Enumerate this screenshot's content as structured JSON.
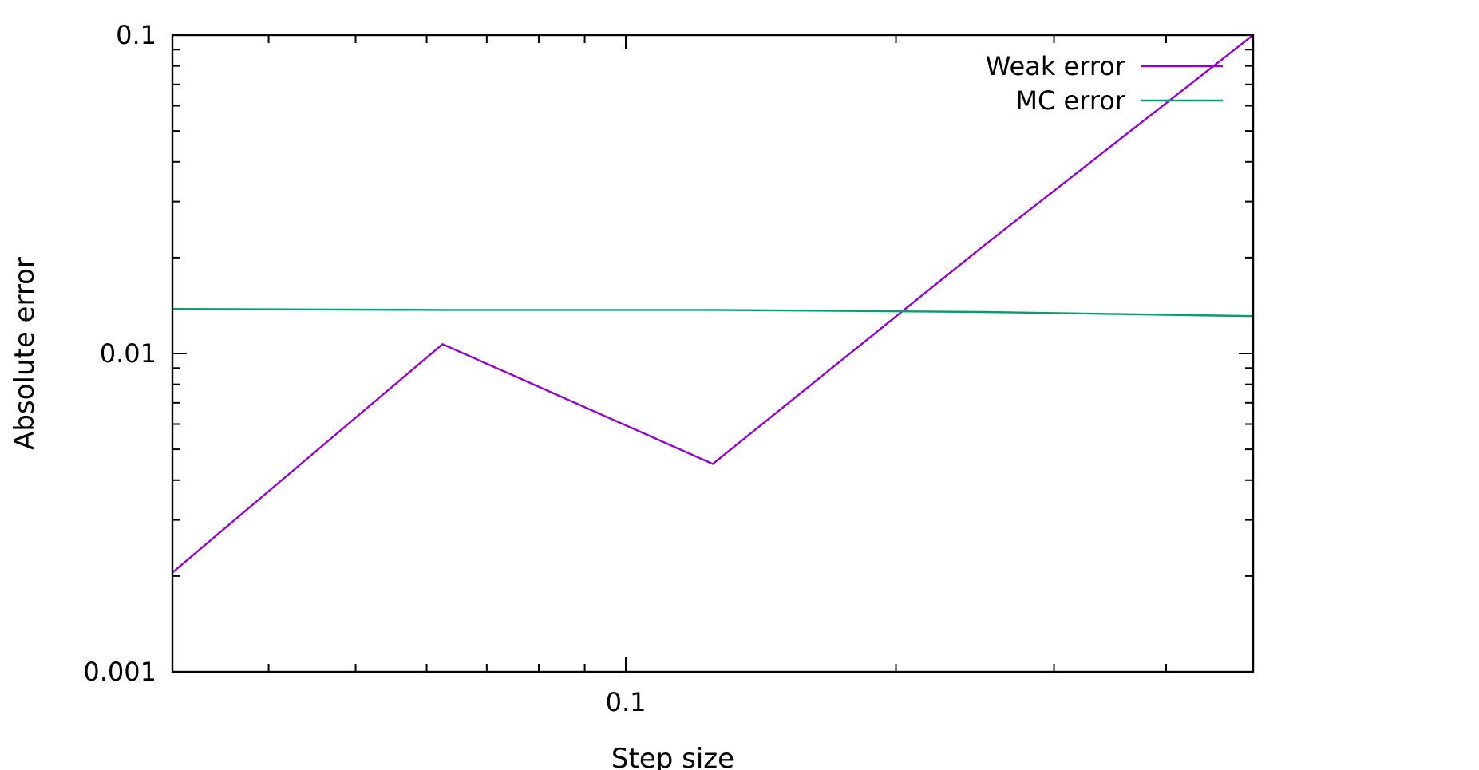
{
  "chart_data": {
    "type": "line",
    "title": "",
    "xlabel": "Step size",
    "ylabel": "Absolute error",
    "xscale": "log",
    "yscale": "log",
    "xlim": [
      0.03125,
      0.5
    ],
    "ylim": [
      0.001,
      0.1
    ],
    "grid": false,
    "legend_position": "top-right",
    "x_tick_labels": [
      {
        "value": 0.1,
        "label": "0.1"
      }
    ],
    "y_tick_labels": [
      {
        "value": 0.001,
        "label": "0.001"
      },
      {
        "value": 0.01,
        "label": "0.01"
      },
      {
        "value": 0.1,
        "label": "0.1"
      }
    ],
    "series": [
      {
        "name": "Weak error",
        "color": "#9400d3",
        "x": [
          0.03125,
          0.0625,
          0.125,
          0.25,
          0.5
        ],
        "y": [
          0.00205,
          0.0107,
          0.0045,
          0.0217,
          0.1
        ]
      },
      {
        "name": "MC error",
        "color": "#009e73",
        "x": [
          0.03125,
          0.0625,
          0.125,
          0.25,
          0.5
        ],
        "y": [
          0.0138,
          0.0137,
          0.0137,
          0.0135,
          0.0131
        ]
      }
    ]
  }
}
